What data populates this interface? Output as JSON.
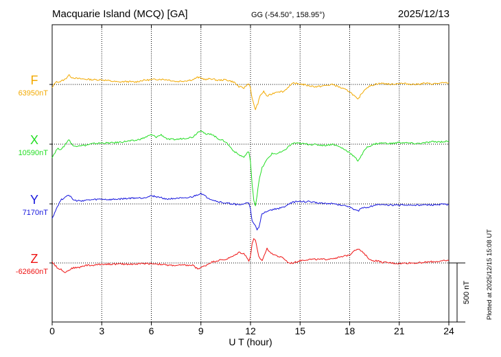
{
  "header": {
    "title": "Macquarie Island (MCQ)  [GA]",
    "coords": "GG (-54.50°, 158.95°)",
    "date": "2025/12/13"
  },
  "side_note": "Plotted at 2025/12/15 15:08 UT",
  "scale_label": "500 nT",
  "chart_data": {
    "type": "line",
    "xlabel": "U T (hour)",
    "xlim": [
      0,
      24
    ],
    "xticks": [
      0,
      3,
      6,
      9,
      12,
      15,
      18,
      21,
      24
    ],
    "grid": true,
    "scale_bar_nT": 500,
    "series": [
      {
        "name": "F",
        "baseline_label": "63950nT",
        "baseline_nT": 63950,
        "color": "#f2a900",
        "x": [
          0,
          0.2,
          0.5,
          0.8,
          1.0,
          1.2,
          1.5,
          2.0,
          2.5,
          3.0,
          3.5,
          4.0,
          4.5,
          5.0,
          5.5,
          6.0,
          6.5,
          7.0,
          7.5,
          8.0,
          8.5,
          8.8,
          9.0,
          9.3,
          9.6,
          10.0,
          10.5,
          11.0,
          11.3,
          11.6,
          11.9,
          12.0,
          12.1,
          12.2,
          12.3,
          12.45,
          12.6,
          12.8,
          13.0,
          13.3,
          13.6,
          14.0,
          14.3,
          14.6,
          15.0,
          15.5,
          16.0,
          16.5,
          17.0,
          17.5,
          18.0,
          18.3,
          18.5,
          18.7,
          19.0,
          19.3,
          19.6,
          20.0,
          20.5,
          21.0,
          21.5,
          22.0,
          22.5,
          23.0,
          23.5,
          24.0
        ],
        "y": [
          -30,
          20,
          25,
          45,
          80,
          60,
          50,
          45,
          40,
          40,
          30,
          20,
          25,
          20,
          35,
          40,
          45,
          40,
          25,
          30,
          40,
          60,
          55,
          40,
          50,
          35,
          40,
          20,
          -20,
          -30,
          10,
          -30,
          -120,
          -170,
          -210,
          -160,
          -90,
          -60,
          -100,
          -80,
          -60,
          -60,
          -20,
          10,
          5,
          -10,
          -20,
          -10,
          0,
          -30,
          -60,
          -100,
          -130,
          -80,
          -30,
          -10,
          5,
          10,
          0,
          10,
          5,
          0,
          10,
          5,
          10,
          15
        ]
      },
      {
        "name": "X",
        "baseline_label": "10590nT",
        "baseline_nT": 10590,
        "color": "#22dd22",
        "x": [
          0,
          0.3,
          0.6,
          1.0,
          1.3,
          1.6,
          2.0,
          2.5,
          3.0,
          3.5,
          4.0,
          4.5,
          5.0,
          5.5,
          6.0,
          6.3,
          6.6,
          7.0,
          7.5,
          8.0,
          8.5,
          8.8,
          9.0,
          9.3,
          9.6,
          10.0,
          10.5,
          11.0,
          11.3,
          11.6,
          11.9,
          12.0,
          12.1,
          12.2,
          12.3,
          12.4,
          12.5,
          12.7,
          13.0,
          13.3,
          13.6,
          14.0,
          14.3,
          14.6,
          15.0,
          15.5,
          16.0,
          16.5,
          17.0,
          17.5,
          18.0,
          18.3,
          18.5,
          18.7,
          19.0,
          19.3,
          19.6,
          20.0,
          20.5,
          21.0,
          21.5,
          22.0,
          22.5,
          23.0,
          23.5,
          24.0
        ],
        "y": [
          -110,
          -40,
          -40,
          40,
          -20,
          -10,
          -10,
          5,
          10,
          10,
          15,
          25,
          30,
          50,
          80,
          60,
          80,
          40,
          40,
          50,
          60,
          100,
          120,
          80,
          90,
          50,
          20,
          -60,
          -90,
          -110,
          -60,
          -150,
          -350,
          -470,
          -520,
          -430,
          -320,
          -200,
          -130,
          -80,
          -80,
          -60,
          -20,
          10,
          5,
          0,
          -5,
          -10,
          0,
          -30,
          -70,
          -110,
          -140,
          -100,
          -30,
          -10,
          5,
          10,
          5,
          15,
          10,
          5,
          10,
          20,
          20,
          25
        ]
      },
      {
        "name": "Y",
        "baseline_label": "7170nT",
        "baseline_nT": 7170,
        "color": "#1414dd",
        "x": [
          0,
          0.2,
          0.5,
          0.8,
          1.0,
          1.3,
          1.6,
          2.0,
          2.5,
          3.0,
          3.5,
          4.0,
          4.5,
          5.0,
          5.5,
          6.0,
          6.5,
          7.0,
          7.5,
          8.0,
          8.5,
          9.0,
          9.3,
          9.6,
          10.0,
          10.5,
          11.0,
          11.3,
          11.6,
          11.9,
          12.0,
          12.1,
          12.2,
          12.3,
          12.4,
          12.5,
          12.7,
          13.0,
          13.3,
          13.6,
          14.0,
          14.3,
          14.6,
          15.0,
          15.5,
          16.0,
          16.5,
          17.0,
          17.5,
          18.0,
          18.3,
          18.5,
          18.7,
          19.0,
          19.3,
          19.6,
          20.0,
          20.5,
          21.0,
          21.5,
          22.0,
          22.5,
          23.0,
          23.5,
          24.0
        ],
        "y": [
          -120,
          -60,
          30,
          60,
          80,
          30,
          25,
          30,
          35,
          40,
          35,
          40,
          45,
          50,
          50,
          70,
          55,
          40,
          50,
          45,
          60,
          90,
          60,
          40,
          20,
          5,
          0,
          -10,
          0,
          10,
          -40,
          -150,
          -170,
          -190,
          -220,
          -200,
          -80,
          -60,
          -50,
          -40,
          -30,
          0,
          15,
          20,
          20,
          10,
          5,
          0,
          -10,
          -20,
          -50,
          -60,
          -40,
          -30,
          -20,
          -5,
          -10,
          -10,
          -10,
          -10,
          -10,
          -10,
          -10,
          -5,
          -5
        ]
      },
      {
        "name": "Z",
        "baseline_label": "-62660nT",
        "baseline_nT": -62660,
        "color": "#ee1111",
        "x": [
          0,
          0.3,
          0.6,
          0.8,
          1.0,
          1.3,
          1.6,
          2.0,
          2.5,
          3.0,
          3.5,
          4.0,
          4.5,
          5.0,
          5.5,
          6.0,
          6.5,
          7.0,
          7.5,
          8.0,
          8.5,
          8.8,
          9.0,
          9.3,
          9.6,
          10.0,
          10.5,
          11.0,
          11.3,
          11.6,
          11.9,
          12.0,
          12.1,
          12.2,
          12.3,
          12.4,
          12.5,
          12.7,
          13.0,
          13.3,
          13.6,
          14.0,
          14.3,
          14.6,
          15.0,
          15.5,
          16.0,
          16.5,
          17.0,
          17.5,
          18.0,
          18.3,
          18.5,
          18.7,
          19.0,
          19.3,
          19.6,
          20.0,
          20.5,
          21.0,
          21.5,
          22.0,
          22.5,
          23.0,
          23.5,
          24.0
        ],
        "y": [
          10,
          -40,
          -60,
          -80,
          -60,
          -40,
          -40,
          -20,
          -20,
          -10,
          -10,
          -10,
          -10,
          -10,
          -5,
          -5,
          -10,
          -20,
          -20,
          -20,
          -20,
          -50,
          -40,
          -20,
          5,
          20,
          30,
          60,
          90,
          80,
          20,
          60,
          160,
          210,
          190,
          120,
          50,
          20,
          120,
          80,
          60,
          40,
          0,
          0,
          20,
          30,
          30,
          30,
          40,
          50,
          70,
          110,
          120,
          100,
          60,
          20,
          20,
          5,
          0,
          -5,
          0,
          0,
          5,
          10,
          15,
          20
        ]
      }
    ]
  }
}
